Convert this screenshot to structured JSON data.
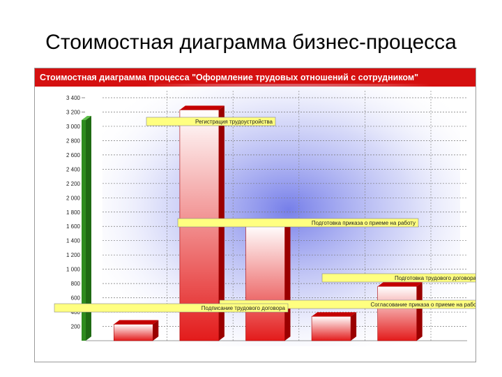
{
  "slide": {
    "title": "Стоимостная диаграмма бизнес-процесса"
  },
  "colors": {
    "header": "#d51010",
    "bar_top": "#ffffff",
    "bar_bottom": "#e31b1b",
    "bar_side": "#9a0000",
    "axis_wall": "#2e8b1e",
    "annotation": "#ffff80",
    "plot_glow": "#6f78e8"
  },
  "chart_data": {
    "type": "bar",
    "title": "Стоимостная диаграмма процесса \"Оформление трудовых отношений с сотрудником\"",
    "xlabel": "",
    "ylabel": "",
    "ylim": [
      0,
      3400
    ],
    "yticks": [
      "200",
      "400",
      "600",
      "800",
      "1 000",
      "1 200",
      "1 400",
      "1 600",
      "1 800",
      "2 000",
      "2 200",
      "2 400",
      "2 600",
      "2 800",
      "3 000",
      "3 200",
      "3 400"
    ],
    "categories": [
      "",
      "",
      "",
      "",
      ""
    ],
    "values": [
      230,
      3230,
      1620,
      340,
      760
    ],
    "grid": true,
    "annotations": [
      {
        "text": "Регистрация трудоустройства",
        "bar": 1
      },
      {
        "text": "Подготовка приказа о приеме на работу",
        "bar": 2
      },
      {
        "text": "Подготовка трудового договора",
        "bar": 4
      },
      {
        "text": "Согласование приказа о приеме на работу",
        "bar": 3
      },
      {
        "text": "Подписание трудового договора",
        "bar": 0
      }
    ]
  }
}
